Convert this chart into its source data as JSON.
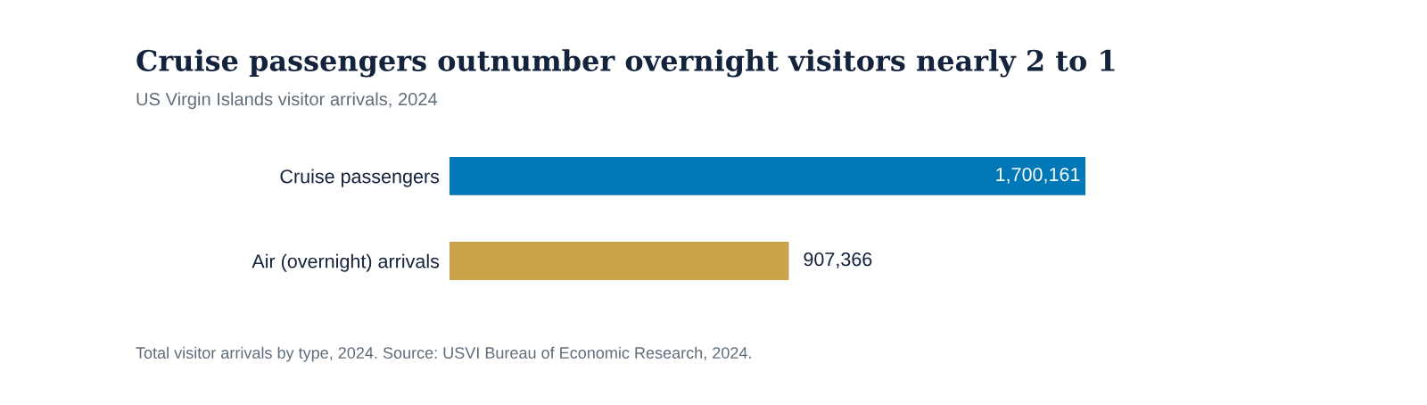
{
  "chart_data": {
    "type": "bar",
    "orientation": "horizontal",
    "title": "Cruise passengers outnumber overnight visitors nearly 2 to 1",
    "subtitle": "US Virgin Islands visitor arrivals, 2024",
    "categories": [
      "Cruise passengers",
      "Air (overnight) arrivals"
    ],
    "values": [
      1700161,
      907366
    ],
    "colors": [
      "#0077b6",
      "#c9a44b"
    ],
    "value_labels": [
      "1,700,161",
      "907,366"
    ],
    "grid": false,
    "legend": false,
    "annotations": [
      "Total visitor arrivals by type, 2024. Source: USVI Bureau of Economic Research, 2024."
    ]
  }
}
